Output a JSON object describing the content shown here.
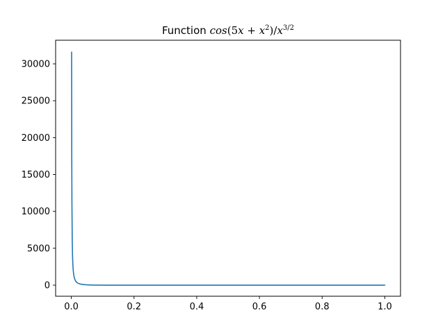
{
  "chart_data": {
    "type": "line",
    "title": {
      "prefix": "Function ",
      "math": {
        "fn": "cos",
        "lparen": "(",
        "five": "5",
        "x1": "x",
        "plus": " + ",
        "x2": "x",
        "sq": "2",
        "rparen_slash": ")/",
        "x3": "x",
        "exp": "3/2"
      }
    },
    "xlabel": "",
    "ylabel": "",
    "xlim": [
      -0.05,
      1.05
    ],
    "ylim": [
      -1500,
      33200
    ],
    "x_ticks": [
      "0.0",
      "0.2",
      "0.4",
      "0.6",
      "0.8",
      "1.0"
    ],
    "y_ticks": [
      "0",
      "5000",
      "10000",
      "15000",
      "20000",
      "25000",
      "30000"
    ],
    "grid": false,
    "series": [
      {
        "color": "#1f77b4",
        "x": [
          0.001,
          0.0015,
          0.002,
          0.003,
          0.004,
          0.005,
          0.006,
          0.007,
          0.008,
          0.009,
          0.01,
          0.012,
          0.014,
          0.016,
          0.018,
          0.02,
          0.025,
          0.03,
          0.035,
          0.04,
          0.05,
          0.06,
          0.07,
          0.08,
          0.1,
          0.12,
          0.15,
          0.2,
          0.25,
          0.3,
          0.35,
          0.4,
          0.45,
          0.5,
          0.55,
          0.6,
          0.65,
          0.7,
          0.75,
          0.8,
          0.85,
          0.9,
          0.95,
          1.0
        ],
        "y": [
          31600,
          17200,
          11150,
          6050,
          3920,
          2790,
          2110,
          1670,
          1360,
          1130,
          960,
          715,
          553,
          440,
          357,
          294,
          200,
          142,
          104,
          78,
          45,
          26.4,
          15.2,
          8.1,
          0.9,
          -2.6,
          -4.7,
          -5.1,
          -4.2,
          -3.1,
          -2.0,
          -1.1,
          -0.35,
          0.25,
          0.7,
          1.0,
          1.17,
          1.2,
          1.12,
          0.96,
          0.74,
          0.47,
          0.17,
          0.14
        ]
      }
    ]
  }
}
